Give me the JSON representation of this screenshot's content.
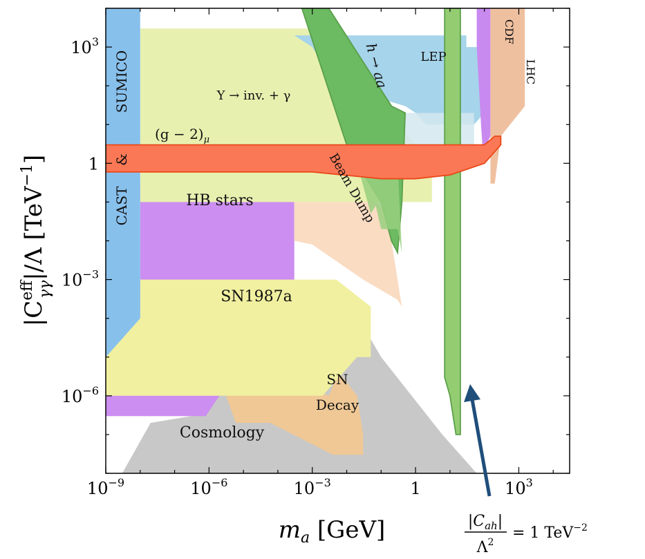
{
  "chart_data": {
    "type": "area",
    "title": "",
    "xlabel": "m_a [GeV]",
    "ylabel": "|C_γγ^eff|/Λ [TeV^-1]",
    "x_scale": "log",
    "y_scale": "log",
    "xlim": [
      1e-09,
      30000.0
    ],
    "ylim": [
      1e-08,
      10000.0
    ],
    "grid": false,
    "x_ticks": [
      {
        "value": 1e-09,
        "label": "10^-9",
        "base": "10",
        "exp": "−9"
      },
      {
        "value": 1e-06,
        "label": "10^-6",
        "base": "10",
        "exp": "−6"
      },
      {
        "value": 0.001,
        "label": "10^-3",
        "base": "10",
        "exp": "−3"
      },
      {
        "value": 1,
        "label": "1",
        "base": "1",
        "exp": ""
      },
      {
        "value": 1000.0,
        "label": "10^3",
        "base": "10",
        "exp": "3"
      }
    ],
    "y_ticks": [
      {
        "value": 1000.0,
        "label": "10^3",
        "base": "10",
        "exp": "3"
      },
      {
        "value": 1,
        "label": "1",
        "base": "1",
        "exp": ""
      },
      {
        "value": 0.001,
        "label": "10^-3",
        "base": "10",
        "exp": "−3"
      },
      {
        "value": 1e-06,
        "label": "10^-6",
        "base": "10",
        "exp": "−6"
      }
    ],
    "regions": [
      {
        "name": "Cosmology",
        "color": "#c8c8c8",
        "edge": "",
        "points": [
          [
            3e-09,
            1e-08
          ],
          [
            2e-08,
            2e-07
          ],
          [
            3e-07,
            3e-07
          ],
          [
            0.0002,
            0.0001
          ],
          [
            0.005,
            0.001
          ],
          [
            0.1,
            1e-05
          ],
          [
            6,
            1e-07
          ],
          [
            60,
            1e-08
          ]
        ]
      },
      {
        "name": "HB stars",
        "color": "#cc8ef0",
        "edge": "",
        "points": [
          [
            1e-09,
            2e-06
          ],
          [
            1e-09,
            3e-07
          ],
          [
            8e-07,
            3e-07
          ],
          [
            2e-06,
            1e-06
          ],
          [
            0.0003,
            1e-06
          ],
          [
            0.0003,
            0.4
          ],
          [
            1e-08,
            0.4
          ],
          [
            1e-08,
            4e-06
          ]
        ]
      },
      {
        "name": "SN Decay",
        "color": "#efc896",
        "edge": "",
        "points": [
          [
            2e-06,
            3e-06
          ],
          [
            0.0002,
            3e-06
          ],
          [
            0.003,
            1e-06
          ],
          [
            0.006,
            4e-06
          ],
          [
            0.02,
            1e-06
          ],
          [
            0.03,
            1e-07
          ],
          [
            0.03,
            3e-08
          ],
          [
            0.004,
            3e-08
          ],
          [
            6e-05,
            2e-07
          ],
          [
            6e-06,
            2e-07
          ]
        ]
      },
      {
        "name": "SN1987a",
        "color": "#f0f0a0",
        "edge": "",
        "points": [
          [
            1e-09,
            0.0001
          ],
          [
            1e-08,
            0.0001
          ],
          [
            1e-08,
            0.001
          ],
          [
            0.005,
            0.001
          ],
          [
            0.05,
            0.0002
          ],
          [
            0.05,
            1e-05
          ],
          [
            0.02,
            1e-05
          ],
          [
            0.002,
            1e-06
          ],
          [
            1e-09,
            1e-06
          ]
        ]
      },
      {
        "name": "Beam Dump",
        "color": "#fadcc3",
        "edge": "",
        "points": [
          [
            0.0003,
            0.6
          ],
          [
            0.001,
            1.4
          ],
          [
            0.02,
            0.3
          ],
          [
            0.15,
            0.05
          ],
          [
            0.3,
            0.001
          ],
          [
            0.4,
            0.0002
          ],
          [
            0.3,
            0.0003
          ],
          [
            0.03,
            0.001
          ],
          [
            0.001,
            0.008
          ],
          [
            0.0003,
            0.01
          ]
        ]
      },
      {
        "name": "Υ → inv. + γ",
        "color": "#e8f0b0",
        "edge": "",
        "points": [
          [
            1e-08,
            3000.0
          ],
          [
            0.001,
            3000.0
          ],
          [
            0.1,
            30
          ],
          [
            3,
            1
          ],
          [
            3,
            0.1
          ],
          [
            1e-08,
            0.1
          ]
        ]
      },
      {
        "name": "LEP",
        "color": "#a6d4ea",
        "edge": "",
        "points": [
          [
            0.0003,
            2000.0
          ],
          [
            0.001,
            2000.0
          ],
          [
            30,
            2000.0
          ],
          [
            30,
            1000.0
          ],
          [
            100,
            1000.0
          ],
          [
            100,
            20
          ],
          [
            50,
            10
          ],
          [
            10,
            10
          ],
          [
            2,
            10
          ],
          [
            1,
            20
          ],
          [
            0.5,
            30
          ],
          [
            0.005,
            100
          ],
          [
            0.001,
            1000.0
          ]
        ]
      },
      {
        "name": "LEP (light)",
        "color": "#d4e8f0",
        "edge": "",
        "points": [
          [
            0.1,
            20
          ],
          [
            50,
            20
          ],
          [
            50,
            1
          ],
          [
            10,
            2
          ],
          [
            0.1,
            2
          ]
        ]
      },
      {
        "name": "CDF",
        "color": "#c98af0",
        "edge": "",
        "points": [
          [
            60,
            10000.0
          ],
          [
            150,
            10000.0
          ],
          [
            150,
            5
          ],
          [
            90,
            2
          ],
          [
            80,
            10
          ],
          [
            60,
            1000.0
          ]
        ]
      },
      {
        "name": "LHC",
        "color": "#efc0a0",
        "edge": "",
        "points": [
          [
            150,
            10000.0
          ],
          [
            1500,
            10000.0
          ],
          [
            1500,
            30
          ],
          [
            300,
            5
          ],
          [
            200,
            0.3
          ],
          [
            150,
            0.3
          ]
        ]
      },
      {
        "name": "h → aa",
        "color": "#6cba62",
        "edge": "#5aa04a",
        "points": [
          [
            0.0005,
            10000.0
          ],
          [
            0.003,
            10000.0
          ],
          [
            0.2,
            30
          ],
          [
            0.5,
            20
          ],
          [
            0.4,
            0.1
          ],
          [
            0.3,
            0.005
          ],
          [
            0.2,
            0.01
          ],
          [
            0.1,
            0.1
          ],
          [
            0.02,
            1
          ],
          [
            0.01,
            3
          ]
        ]
      },
      {
        "name": "h → aa (light)",
        "color": "#98cf7f",
        "edge": "",
        "points": [
          [
            0.02,
            1
          ],
          [
            0.3,
            1
          ],
          [
            0.4,
            0.005
          ],
          [
            0.3,
            0.02
          ],
          [
            0.1,
            0.02
          ],
          [
            0.07,
            0.08
          ],
          [
            0.05,
            0.05
          ]
        ]
      },
      {
        "name": "C_ah band",
        "color": "#94cc72",
        "edge": "#5aa04a",
        "points": [
          [
            7,
            10000.0
          ],
          [
            20,
            10000.0
          ],
          [
            20,
            1e-07
          ],
          [
            15,
            1e-07
          ],
          [
            10,
            1e-06
          ],
          [
            7,
            3e-06
          ]
        ]
      },
      {
        "name": "SUMICO & CAST",
        "color": "#88c0ec",
        "edge": "",
        "points": [
          [
            1e-09,
            10000.0
          ],
          [
            1e-08,
            10000.0
          ],
          [
            1e-08,
            0.0001
          ],
          [
            1e-09,
            1e-05
          ]
        ]
      },
      {
        "name": "(g − 2)_μ",
        "color": "#fb7856",
        "edge": "#ea4818",
        "points": [
          [
            1e-09,
            3
          ],
          [
            0.003,
            3
          ],
          [
            0.2,
            3
          ],
          [
            100,
            3
          ],
          [
            200,
            5
          ],
          [
            300,
            5
          ],
          [
            300,
            3
          ],
          [
            100,
            1
          ],
          [
            10,
            0.5
          ],
          [
            1,
            0.4
          ],
          [
            0.1,
            0.4
          ],
          [
            0.001,
            0.6
          ],
          [
            1e-09,
            0.6
          ]
        ]
      }
    ],
    "annotations": [
      {
        "text": "SUMICO",
        "rotation": -90
      },
      {
        "text": "&",
        "rotation": -90
      },
      {
        "text": "CAST",
        "rotation": -90
      },
      {
        "text": "Υ → inv. + γ",
        "rotation": 0
      },
      {
        "text": "(g − 2)μ",
        "rotation": 0
      },
      {
        "text": "h → aa",
        "rotation": 75
      },
      {
        "text": "LEP",
        "rotation": 0
      },
      {
        "text": "CDF",
        "rotation": 90
      },
      {
        "text": "LHC",
        "rotation": 90
      },
      {
        "text": "Beam Dump",
        "rotation": 60
      },
      {
        "text": "HB stars",
        "rotation": 0
      },
      {
        "text": "SN1987a",
        "rotation": 0
      },
      {
        "text": "SN",
        "rotation": 0
      },
      {
        "text": "Decay",
        "rotation": 0
      },
      {
        "text": "Cosmology",
        "rotation": 0
      },
      {
        "text": "|C_ah|/Λ² = 1 TeV⁻²",
        "rotation": 0
      }
    ]
  },
  "labels": {
    "sumico": "SUMICO",
    "amp": "&",
    "cast": "CAST",
    "upsilon": "Υ → inv. + γ",
    "g2_main": "(g − 2)",
    "g2_sub": "μ",
    "haa": "h → aa",
    "lep": "LEP",
    "cdf": "CDF",
    "lhc": "LHC",
    "beam_dump": "Beam Dump",
    "hb_stars": "HB stars",
    "sn1987a": "SN1987a",
    "sn": "SN",
    "decay": "Decay",
    "cosmology": "Cosmology",
    "cah_num": "|C",
    "cah_sub": "ah",
    "cah_close": "|",
    "cah_den": "Λ",
    "cah_den_sup": "2",
    "cah_rhs": "= 1 TeV",
    "cah_rhs_sup": "−2",
    "xlabel_m": "m",
    "xlabel_sub": "a",
    "xlabel_unit": " [GeV]",
    "ylabel_pre": "|C",
    "ylabel_sup": "eff",
    "ylabel_sub": "γγ",
    "ylabel_mid": "|/Λ [TeV",
    "ylabel_sup2": "−1",
    "ylabel_post": "]"
  },
  "colors": {
    "arrow": "#1f4e7a"
  }
}
